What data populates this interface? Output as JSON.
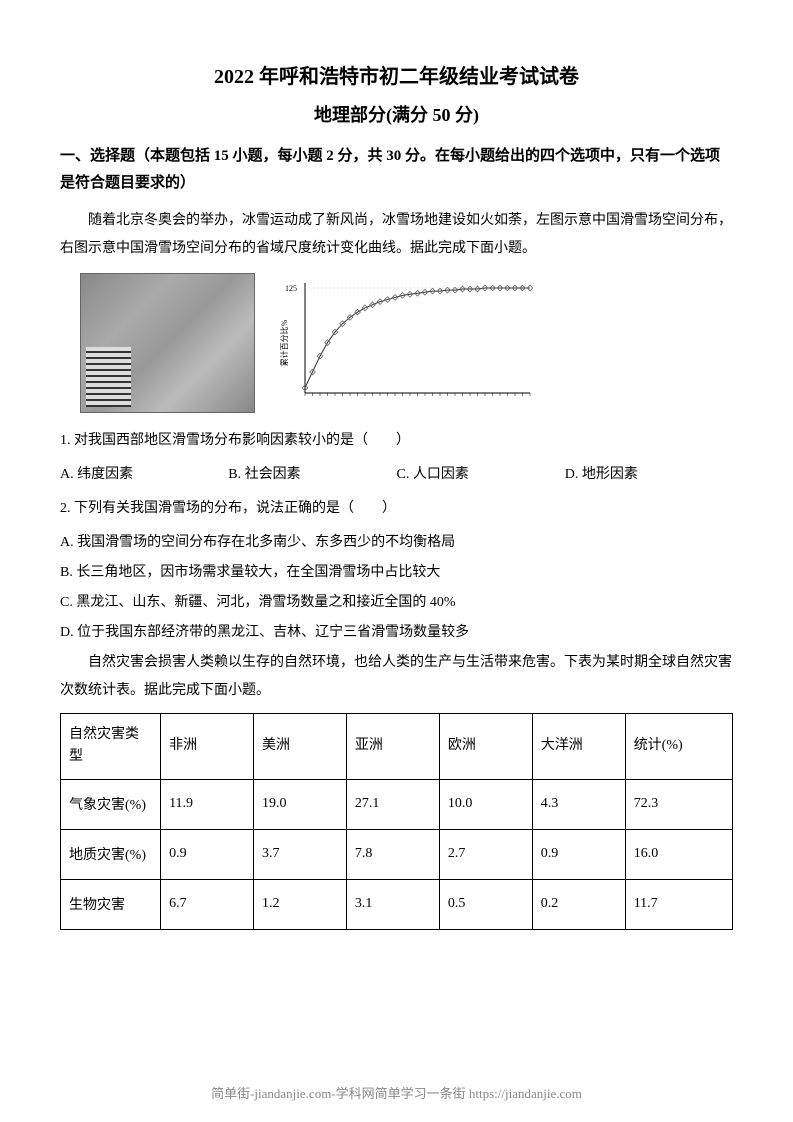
{
  "title_main": "2022 年呼和浩特市初二年级结业考试试卷",
  "title_sub": "地理部分(满分 50 分)",
  "section_header": "一、选择题（本题包括 15 小题，每小题 2 分，共 30 分。在每小题给出的四个选项中，只有一个选项是符合题目要求的）",
  "context1": "随着北京冬奥会的举办，冰雪运动成了新风尚，冰雪场地建设如火如荼，左图示意中国滑雪场空间分布，右图示意中国滑雪场空间分布的省域尺度统计变化曲线。据此完成下面小题。",
  "chart": {
    "type": "line",
    "ylim": [
      0,
      120
    ],
    "ytick_values": [
      0,
      25,
      50,
      75,
      100,
      120
    ],
    "ytick_label_125": "125",
    "points_x": [
      0,
      1,
      2,
      3,
      4,
      5,
      6,
      7,
      8,
      9,
      10,
      11,
      12,
      13,
      14,
      15,
      16,
      17,
      18,
      19,
      20,
      21,
      22,
      23,
      24,
      25,
      26,
      27,
      28,
      29,
      30
    ],
    "points_y": [
      5,
      20,
      35,
      48,
      58,
      66,
      72,
      77,
      81,
      84,
      87,
      89,
      91,
      93,
      94,
      95,
      96,
      97,
      97,
      98,
      98,
      99,
      99,
      99,
      100,
      100,
      100,
      100,
      100,
      100,
      100
    ],
    "line_color": "#333333",
    "marker_color": "#666666",
    "grid_color": "#cccccc",
    "background_color": "#ffffff",
    "ylabel": "累计百分比%"
  },
  "q1": {
    "text": "1. 对我国西部地区滑雪场分布影响因素较小的是（　　）",
    "a": "A. 纬度因素",
    "b": "B. 社会因素",
    "c": "C. 人口因素",
    "d": "D. 地形因素"
  },
  "q2": {
    "text": "2. 下列有关我国滑雪场的分布，说法正确的是（　　）",
    "a": "A. 我国滑雪场的空间分布存在北多南少、东多西少的不均衡格局",
    "b": "B. 长三角地区，因市场需求量较大，在全国滑雪场中占比较大",
    "c": "C. 黑龙江、山东、新疆、河北，滑雪场数量之和接近全国的 40%",
    "d": "D. 位于我国东部经济带的黑龙江、吉林、辽宁三省滑雪场数量较多"
  },
  "context2": "自然灾害会损害人类赖以生存的自然环境，也给人类的生产与生活带来危害。下表为某时期全球自然灾害次数统计表。据此完成下面小题。",
  "table": {
    "columns": [
      "自然灾害类型",
      "非洲",
      "美洲",
      "亚洲",
      "欧洲",
      "大洋洲",
      "统计(%)"
    ],
    "rows": [
      [
        "气象灾害(%)",
        "11.9",
        "19.0",
        "27.1",
        "10.0",
        "4.3",
        "72.3"
      ],
      [
        "地质灾害(%)",
        "0.9",
        "3.7",
        "7.8",
        "2.7",
        "0.9",
        "16.0"
      ],
      [
        "生物灾害",
        "6.7",
        "1.2",
        "3.1",
        "0.5",
        "0.2",
        "11.7"
      ]
    ],
    "col_widths": [
      "14%",
      "13%",
      "13%",
      "13%",
      "13%",
      "13%",
      "15%"
    ]
  },
  "footer_text": "简单街-jiandanjie.com-学科网简单学习一条街 https://jiandanjie.com"
}
